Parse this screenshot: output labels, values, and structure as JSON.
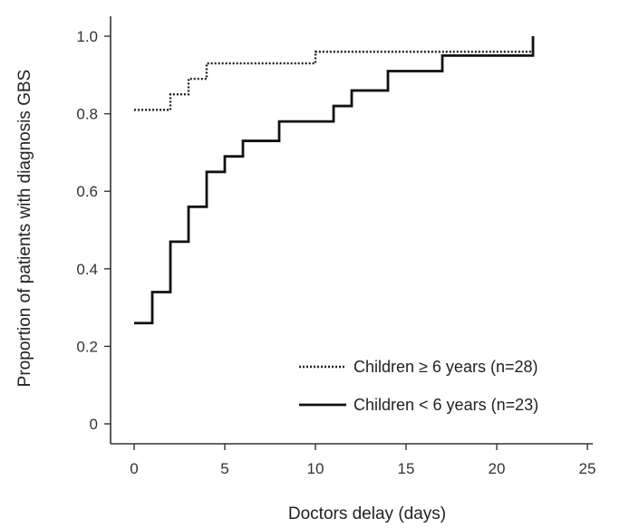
{
  "chart_data": {
    "type": "line",
    "subtype": "step",
    "xlabel": "Doctors delay (days)",
    "ylabel": "Proportion of patients with diagnosis GBS",
    "xlim": [
      0,
      25
    ],
    "ylim": [
      0,
      1.0
    ],
    "x_ticks": [
      "0",
      "5",
      "10",
      "15",
      "20",
      "25"
    ],
    "y_ticks": [
      "0",
      "0.2",
      "0.4",
      "0.6",
      "0.8",
      "1.0"
    ],
    "grid": false,
    "legend_position": "bottom-right",
    "series": [
      {
        "name": "Children ≥ 6 years (n=28)",
        "line_style": "dotted",
        "color": "#222222",
        "x": [
          0,
          2,
          2.5,
          3,
          4,
          10,
          21,
          22
        ],
        "y": [
          0.81,
          0.85,
          0.85,
          0.89,
          0.93,
          0.96,
          0.96,
          1.0
        ]
      },
      {
        "name": "Children < 6 years (n=23)",
        "line_style": "solid",
        "color": "#111111",
        "x": [
          0,
          1,
          2,
          3,
          4,
          5,
          6,
          8,
          11,
          12,
          14,
          17,
          22
        ],
        "y": [
          0.26,
          0.34,
          0.47,
          0.56,
          0.65,
          0.69,
          0.73,
          0.78,
          0.82,
          0.86,
          0.91,
          0.95,
          1.0
        ]
      }
    ]
  }
}
